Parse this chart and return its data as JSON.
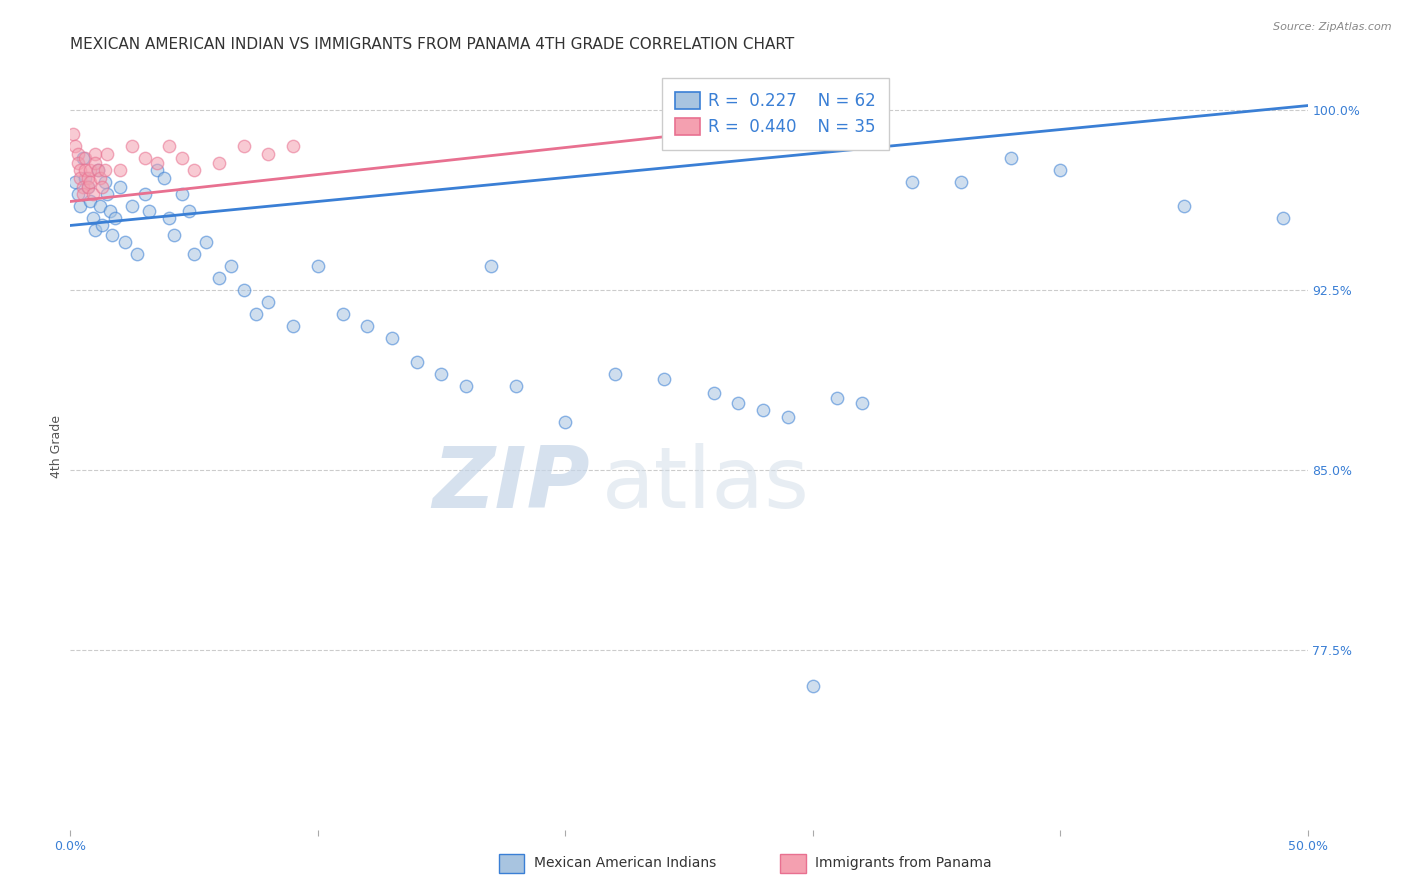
{
  "title": "MEXICAN AMERICAN INDIAN VS IMMIGRANTS FROM PANAMA 4TH GRADE CORRELATION CHART",
  "source": "Source: ZipAtlas.com",
  "ylabel": "4th Grade",
  "xlim": [
    0.0,
    0.5
  ],
  "ylim": [
    0.7,
    1.02
  ],
  "xticks": [
    0.0,
    0.1,
    0.2,
    0.3,
    0.4,
    0.5
  ],
  "xtick_labels": [
    "0.0%",
    "",
    "",
    "",
    "",
    "50.0%"
  ],
  "yticks": [
    0.775,
    0.85,
    0.925,
    1.0
  ],
  "ytick_labels": [
    "77.5%",
    "85.0%",
    "92.5%",
    "100.0%"
  ],
  "blue_R": "0.227",
  "blue_N": "62",
  "pink_R": "0.440",
  "pink_N": "35",
  "legend_label_blue": "Mexican American Indians",
  "legend_label_pink": "Immigrants from Panama",
  "blue_scatter_x": [
    0.002,
    0.003,
    0.004,
    0.005,
    0.006,
    0.007,
    0.008,
    0.009,
    0.01,
    0.011,
    0.012,
    0.013,
    0.014,
    0.015,
    0.016,
    0.017,
    0.018,
    0.02,
    0.022,
    0.025,
    0.027,
    0.03,
    0.032,
    0.035,
    0.038,
    0.04,
    0.042,
    0.045,
    0.048,
    0.05,
    0.055,
    0.06,
    0.065,
    0.07,
    0.075,
    0.08,
    0.09,
    0.1,
    0.11,
    0.12,
    0.13,
    0.14,
    0.15,
    0.16,
    0.17,
    0.18,
    0.2,
    0.22,
    0.24,
    0.26,
    0.27,
    0.28,
    0.29,
    0.3,
    0.31,
    0.32,
    0.34,
    0.36,
    0.38,
    0.4,
    0.45,
    0.49
  ],
  "blue_scatter_y": [
    0.97,
    0.965,
    0.96,
    0.98,
    0.972,
    0.968,
    0.962,
    0.955,
    0.95,
    0.975,
    0.96,
    0.952,
    0.97,
    0.965,
    0.958,
    0.948,
    0.955,
    0.968,
    0.945,
    0.96,
    0.94,
    0.965,
    0.958,
    0.975,
    0.972,
    0.955,
    0.948,
    0.965,
    0.958,
    0.94,
    0.945,
    0.93,
    0.935,
    0.925,
    0.915,
    0.92,
    0.91,
    0.935,
    0.915,
    0.91,
    0.905,
    0.895,
    0.89,
    0.885,
    0.935,
    0.885,
    0.87,
    0.89,
    0.888,
    0.882,
    0.878,
    0.875,
    0.872,
    0.76,
    0.88,
    0.878,
    0.97,
    0.97,
    0.98,
    0.975,
    0.96,
    0.955
  ],
  "pink_scatter_x": [
    0.001,
    0.002,
    0.003,
    0.003,
    0.004,
    0.004,
    0.005,
    0.005,
    0.006,
    0.006,
    0.007,
    0.007,
    0.008,
    0.008,
    0.009,
    0.01,
    0.01,
    0.011,
    0.012,
    0.013,
    0.014,
    0.015,
    0.02,
    0.025,
    0.03,
    0.035,
    0.04,
    0.045,
    0.05,
    0.06,
    0.07,
    0.08,
    0.09,
    0.3,
    0.31
  ],
  "pink_scatter_y": [
    0.99,
    0.985,
    0.982,
    0.978,
    0.975,
    0.972,
    0.968,
    0.965,
    0.98,
    0.975,
    0.972,
    0.968,
    0.975,
    0.97,
    0.965,
    0.982,
    0.978,
    0.975,
    0.972,
    0.968,
    0.975,
    0.982,
    0.975,
    0.985,
    0.98,
    0.978,
    0.985,
    0.98,
    0.975,
    0.978,
    0.985,
    0.982,
    0.985,
    0.998,
    0.995
  ],
  "blue_line_x": [
    0.0,
    0.5
  ],
  "blue_line_y": [
    0.952,
    1.002
  ],
  "pink_line_x": [
    0.0,
    0.32
  ],
  "pink_line_y": [
    0.962,
    0.998
  ],
  "watermark_zip": "ZIP",
  "watermark_atlas": "atlas",
  "background_color": "#ffffff",
  "scatter_size": 80,
  "scatter_alpha": 0.55,
  "line_color_blue": "#3a7fd5",
  "line_color_pink": "#e87090",
  "scatter_color_blue": "#a8c4e0",
  "scatter_color_pink": "#f4a0b0",
  "grid_color": "#cccccc",
  "title_fontsize": 11,
  "axis_label_fontsize": 9,
  "tick_fontsize": 9,
  "legend_fontsize": 12
}
